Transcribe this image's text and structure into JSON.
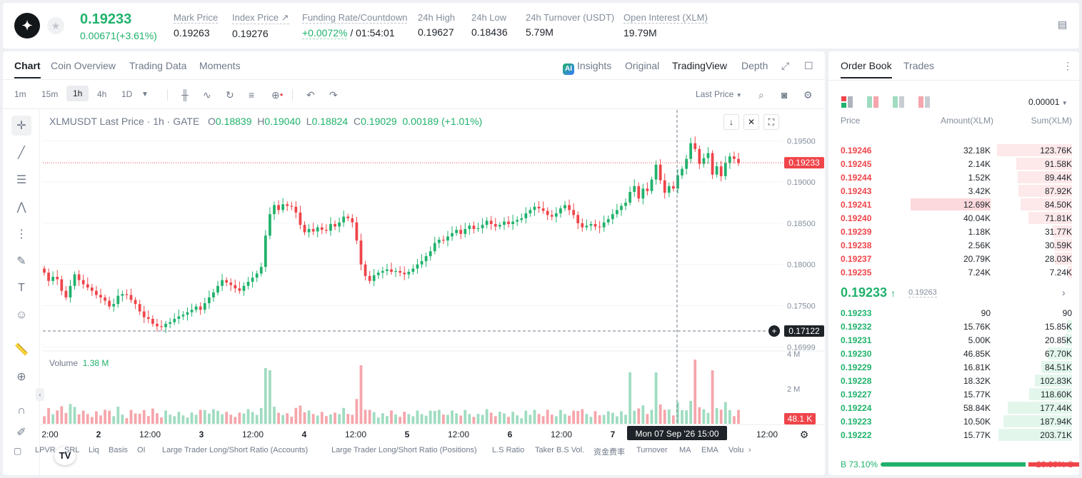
{
  "ticker": {
    "logo": "stellar-logo",
    "last_price": "0.19233",
    "change": "0.00671(+3.61%)",
    "stats": [
      {
        "label": "Mark Price",
        "value": "0.19263"
      },
      {
        "label": "Index Price ↗",
        "value": "0.19276"
      },
      {
        "label": "Funding Rate/Countdown",
        "value_green": "+0.0072%",
        "value_rest": " / 01:54:01"
      },
      {
        "label": "24h High",
        "value": "0.19627"
      },
      {
        "label": "24h Low",
        "value": "0.18436"
      },
      {
        "label": "24h Turnover (USDT)",
        "value": "5.79M"
      },
      {
        "label": "Open Interest (XLM)",
        "value": "19.79M"
      }
    ]
  },
  "chart_tabs": [
    "Chart",
    "Coin Overview",
    "Trading Data",
    "Moments"
  ],
  "view_tabs": {
    "insights": "Insights",
    "original": "Original",
    "tradingview": "TradingView",
    "depth": "Depth"
  },
  "intervals": [
    "1m",
    "15m",
    "1h",
    "4h",
    "1D"
  ],
  "price_type": "Last Price",
  "legend": {
    "symbol": "XLMUSDT Last Price · 1h · GATE",
    "o": "0.18839",
    "h": "0.19040",
    "l": "0.18824",
    "c": "0.19029",
    "chg": "0.00189 (+1.01%)"
  },
  "volume_legend": {
    "label": "Volume",
    "value": "1.38 M"
  },
  "price_labels": {
    "last": "0.19233",
    "crosshair": "0.17122",
    "volume_last": "48.1 K"
  },
  "crosshair_time": "Mon 07 Sep '26   15:00",
  "indicators": [
    "LPVR",
    "SRL",
    "Liq",
    "Basis",
    "OI",
    "Large Trader Long/Short Ratio (Accounts)",
    "Large Trader Long/Short Ratio (Positions)",
    "L.S Ratio",
    "Taker B.S Vol.",
    "资金费率",
    "Turnover",
    "MA",
    "EMA",
    "Volu"
  ],
  "colors": {
    "up": "#20b26c",
    "down": "#ef454a",
    "up_vol": "#9fdcc0",
    "down_vol": "#f5a5ab"
  },
  "chart_data": {
    "type": "candlestick",
    "title": "XLMUSDT Last Price · 1h · GATE",
    "y_ticks": [
      "0.19500",
      "0.19000",
      "0.18500",
      "0.18000",
      "0.17500",
      "0.16999"
    ],
    "volume_ticks": [
      "4 M",
      "2 M"
    ],
    "x_ticks": [
      "2:00",
      "2",
      "12:00",
      "3",
      "12:00",
      "4",
      "12:00",
      "5",
      "12:00",
      "6",
      "12:00",
      "7",
      "12:00"
    ],
    "ylim": [
      0.1695,
      0.1965
    ],
    "closes": [
      0.179,
      0.178,
      0.1785,
      0.1782,
      0.1768,
      0.176,
      0.1774,
      0.1788,
      0.1781,
      0.1776,
      0.1772,
      0.1768,
      0.1763,
      0.176,
      0.1756,
      0.1749,
      0.1752,
      0.1762,
      0.1764,
      0.1763,
      0.1757,
      0.1752,
      0.1743,
      0.1736,
      0.1734,
      0.1728,
      0.1725,
      0.1724,
      0.1728,
      0.173,
      0.1734,
      0.1737,
      0.1739,
      0.1742,
      0.1745,
      0.1749,
      0.1745,
      0.1753,
      0.176,
      0.1766,
      0.1774,
      0.1781,
      0.1778,
      0.1775,
      0.1771,
      0.1768,
      0.1774,
      0.1779,
      0.1784,
      0.1789,
      0.1797,
      0.1835,
      0.1861,
      0.1872,
      0.1866,
      0.1873,
      0.1871,
      0.187,
      0.1863,
      0.1848,
      0.1839,
      0.1843,
      0.184,
      0.1845,
      0.1842,
      0.1841,
      0.1849,
      0.1846,
      0.1851,
      0.1858,
      0.1856,
      0.1851,
      0.1829,
      0.18,
      0.1786,
      0.178,
      0.1787,
      0.179,
      0.1792,
      0.1794,
      0.1791,
      0.1792,
      0.179,
      0.1788,
      0.1791,
      0.1795,
      0.18,
      0.1804,
      0.181,
      0.1816,
      0.1826,
      0.183,
      0.1829,
      0.1834,
      0.1838,
      0.1842,
      0.1837,
      0.1843,
      0.1847,
      0.1843,
      0.1844,
      0.1848,
      0.1853,
      0.1849,
      0.1846,
      0.1848,
      0.1852,
      0.1849,
      0.1852,
      0.1854,
      0.1856,
      0.1862,
      0.1866,
      0.187,
      0.1868,
      0.1865,
      0.186,
      0.1858,
      0.1862,
      0.1868,
      0.1872,
      0.1866,
      0.186,
      0.185,
      0.1845,
      0.1847,
      0.1849,
      0.1846,
      0.1845,
      0.1851,
      0.1855,
      0.1861,
      0.1866,
      0.1871,
      0.1875,
      0.1888,
      0.1895,
      0.188,
      0.1892,
      0.1889,
      0.1903,
      0.1921,
      0.1902,
      0.1887,
      0.1895,
      0.1892,
      0.1908,
      0.1916,
      0.1928,
      0.1947,
      0.194,
      0.1922,
      0.1929,
      0.1935,
      0.1909,
      0.1919,
      0.1907,
      0.1923,
      0.1931,
      0.1928,
      0.1923
    ],
    "opens": [
      0.1795,
      0.179,
      0.178,
      0.1785,
      0.1782,
      0.1768,
      0.176,
      0.1774,
      0.1788,
      0.1781,
      0.1776,
      0.1772,
      0.1768,
      0.1763,
      0.176,
      0.1756,
      0.1749,
      0.1752,
      0.1762,
      0.1764,
      0.1763,
      0.1757,
      0.1752,
      0.1743,
      0.1736,
      0.1734,
      0.1728,
      0.1725,
      0.1724,
      0.1728,
      0.173,
      0.1734,
      0.1737,
      0.1739,
      0.1742,
      0.1745,
      0.1749,
      0.1745,
      0.1753,
      0.176,
      0.1766,
      0.1774,
      0.1781,
      0.1778,
      0.1775,
      0.1771,
      0.1768,
      0.1774,
      0.1779,
      0.1784,
      0.1789,
      0.1797,
      0.1835,
      0.1861,
      0.1872,
      0.1866,
      0.1873,
      0.1871,
      0.187,
      0.1863,
      0.1848,
      0.1839,
      0.1843,
      0.184,
      0.1845,
      0.1842,
      0.1841,
      0.1849,
      0.1846,
      0.1851,
      0.1858,
      0.1856,
      0.1851,
      0.1829,
      0.18,
      0.1786,
      0.178,
      0.1787,
      0.179,
      0.1792,
      0.1794,
      0.1791,
      0.1792,
      0.179,
      0.1788,
      0.1791,
      0.1795,
      0.18,
      0.1804,
      0.181,
      0.1816,
      0.1826,
      0.183,
      0.1829,
      0.1834,
      0.1838,
      0.1842,
      0.1837,
      0.1843,
      0.1847,
      0.1843,
      0.1844,
      0.1848,
      0.1853,
      0.1849,
      0.1846,
      0.1848,
      0.1852,
      0.1849,
      0.1852,
      0.1854,
      0.1856,
      0.1862,
      0.1866,
      0.187,
      0.1868,
      0.1865,
      0.186,
      0.1858,
      0.1862,
      0.1868,
      0.1872,
      0.1866,
      0.186,
      0.185,
      0.1845,
      0.1847,
      0.1849,
      0.1846,
      0.1845,
      0.1851,
      0.1855,
      0.1861,
      0.1866,
      0.1871,
      0.1875,
      0.1888,
      0.1895,
      0.188,
      0.1892,
      0.1889,
      0.1903,
      0.1921,
      0.1902,
      0.1887,
      0.1895,
      0.1892,
      0.1908,
      0.1916,
      0.1928,
      0.1947,
      0.194,
      0.1922,
      0.1929,
      0.1935,
      0.1909,
      0.1919,
      0.1907,
      0.1923,
      0.1931,
      0.1928
    ]
  },
  "orderbook": {
    "tabs": [
      "Order Book",
      "Trades"
    ],
    "precision": "0.00001",
    "headers": {
      "price": "Price",
      "amount": "Amount(XLM)",
      "sum": "Sum(XLM)"
    },
    "asks": [
      {
        "price": "0.19246",
        "amount": "32.18K",
        "sum": "123.76K",
        "depth": 0.7
      },
      {
        "price": "0.19245",
        "amount": "2.14K",
        "sum": "91.58K",
        "depth": 0.52
      },
      {
        "price": "0.19244",
        "amount": "1.52K",
        "sum": "89.44K",
        "depth": 0.51
      },
      {
        "price": "0.19243",
        "amount": "3.42K",
        "sum": "87.92K",
        "depth": 0.5
      },
      {
        "price": "0.19241",
        "amount": "12.69K",
        "sum": "84.50K",
        "depth": 0.48,
        "highlight": 0.36
      },
      {
        "price": "0.19240",
        "amount": "40.04K",
        "sum": "71.81K",
        "depth": 0.41
      },
      {
        "price": "0.19239",
        "amount": "1.18K",
        "sum": "31.77K",
        "depth": 0.18
      },
      {
        "price": "0.19238",
        "amount": "2.56K",
        "sum": "30.59K",
        "depth": 0.17
      },
      {
        "price": "0.19237",
        "amount": "20.79K",
        "sum": "28.03K",
        "depth": 0.16
      },
      {
        "price": "0.19235",
        "amount": "7.24K",
        "sum": "7.24K",
        "depth": 0.04
      }
    ],
    "mid": {
      "price": "0.19233",
      "arrow": "↑",
      "mark": "0.19263"
    },
    "bids": [
      {
        "price": "0.19233",
        "amount": "90",
        "sum": "90",
        "depth": 0.0
      },
      {
        "price": "0.19232",
        "amount": "15.76K",
        "sum": "15.85K",
        "depth": 0.05
      },
      {
        "price": "0.19231",
        "amount": "5.00K",
        "sum": "20.85K",
        "depth": 0.07
      },
      {
        "price": "0.19230",
        "amount": "46.85K",
        "sum": "67.70K",
        "depth": 0.23
      },
      {
        "price": "0.19229",
        "amount": "16.81K",
        "sum": "84.51K",
        "depth": 0.29
      },
      {
        "price": "0.19228",
        "amount": "18.32K",
        "sum": "102.83K",
        "depth": 0.35
      },
      {
        "price": "0.19227",
        "amount": "15.77K",
        "sum": "118.60K",
        "depth": 0.4
      },
      {
        "price": "0.19224",
        "amount": "58.84K",
        "sum": "177.44K",
        "depth": 0.6
      },
      {
        "price": "0.19223",
        "amount": "10.50K",
        "sum": "187.94K",
        "depth": 0.64
      },
      {
        "price": "0.19222",
        "amount": "15.77K",
        "sum": "203.71K",
        "depth": 0.69
      }
    ],
    "ratio": {
      "buy_label": "B",
      "buy": "73.10%",
      "buy_frac": 0.731,
      "sell": "26.90%",
      "sell_label": "S"
    }
  }
}
